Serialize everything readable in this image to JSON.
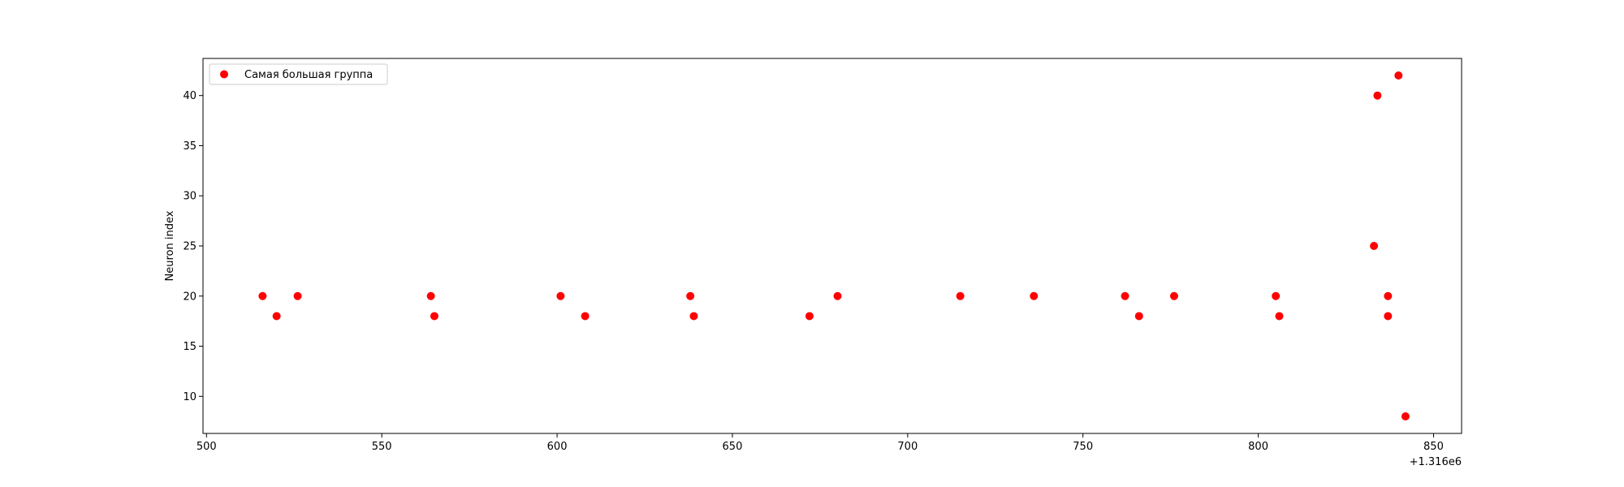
{
  "chart_data": {
    "type": "scatter",
    "title": "",
    "xlabel": "",
    "ylabel": "Neuron index",
    "x_offset_label": "+1.316e6",
    "xlim": [
      499,
      858
    ],
    "ylim": [
      6.3,
      43.7
    ],
    "x_ticks": [
      500,
      550,
      600,
      650,
      700,
      750,
      800,
      850
    ],
    "y_ticks": [
      10,
      15,
      20,
      25,
      30,
      35,
      40
    ],
    "x_tick_labels": [
      "500",
      "550",
      "600",
      "650",
      "700",
      "750",
      "800",
      "850"
    ],
    "y_tick_labels": [
      "10",
      "15",
      "20",
      "25",
      "30",
      "35",
      "40"
    ],
    "grid": false,
    "legend": {
      "position": "top-left",
      "entries": [
        "Самая большая группа"
      ]
    },
    "series": [
      {
        "name": "Самая большая группа",
        "color": "#ff0000",
        "points": [
          [
            516,
            20
          ],
          [
            520,
            18
          ],
          [
            526,
            20
          ],
          [
            564,
            20
          ],
          [
            565,
            18
          ],
          [
            601,
            20
          ],
          [
            608,
            18
          ],
          [
            638,
            20
          ],
          [
            639,
            18
          ],
          [
            672,
            18
          ],
          [
            680,
            20
          ],
          [
            715,
            20
          ],
          [
            736,
            20
          ],
          [
            762,
            20
          ],
          [
            766,
            18
          ],
          [
            776,
            20
          ],
          [
            805,
            20
          ],
          [
            806,
            18
          ],
          [
            833,
            25
          ],
          [
            834,
            40
          ],
          [
            837,
            20
          ],
          [
            837,
            18
          ],
          [
            840,
            42
          ],
          [
            842,
            8
          ]
        ]
      }
    ]
  }
}
